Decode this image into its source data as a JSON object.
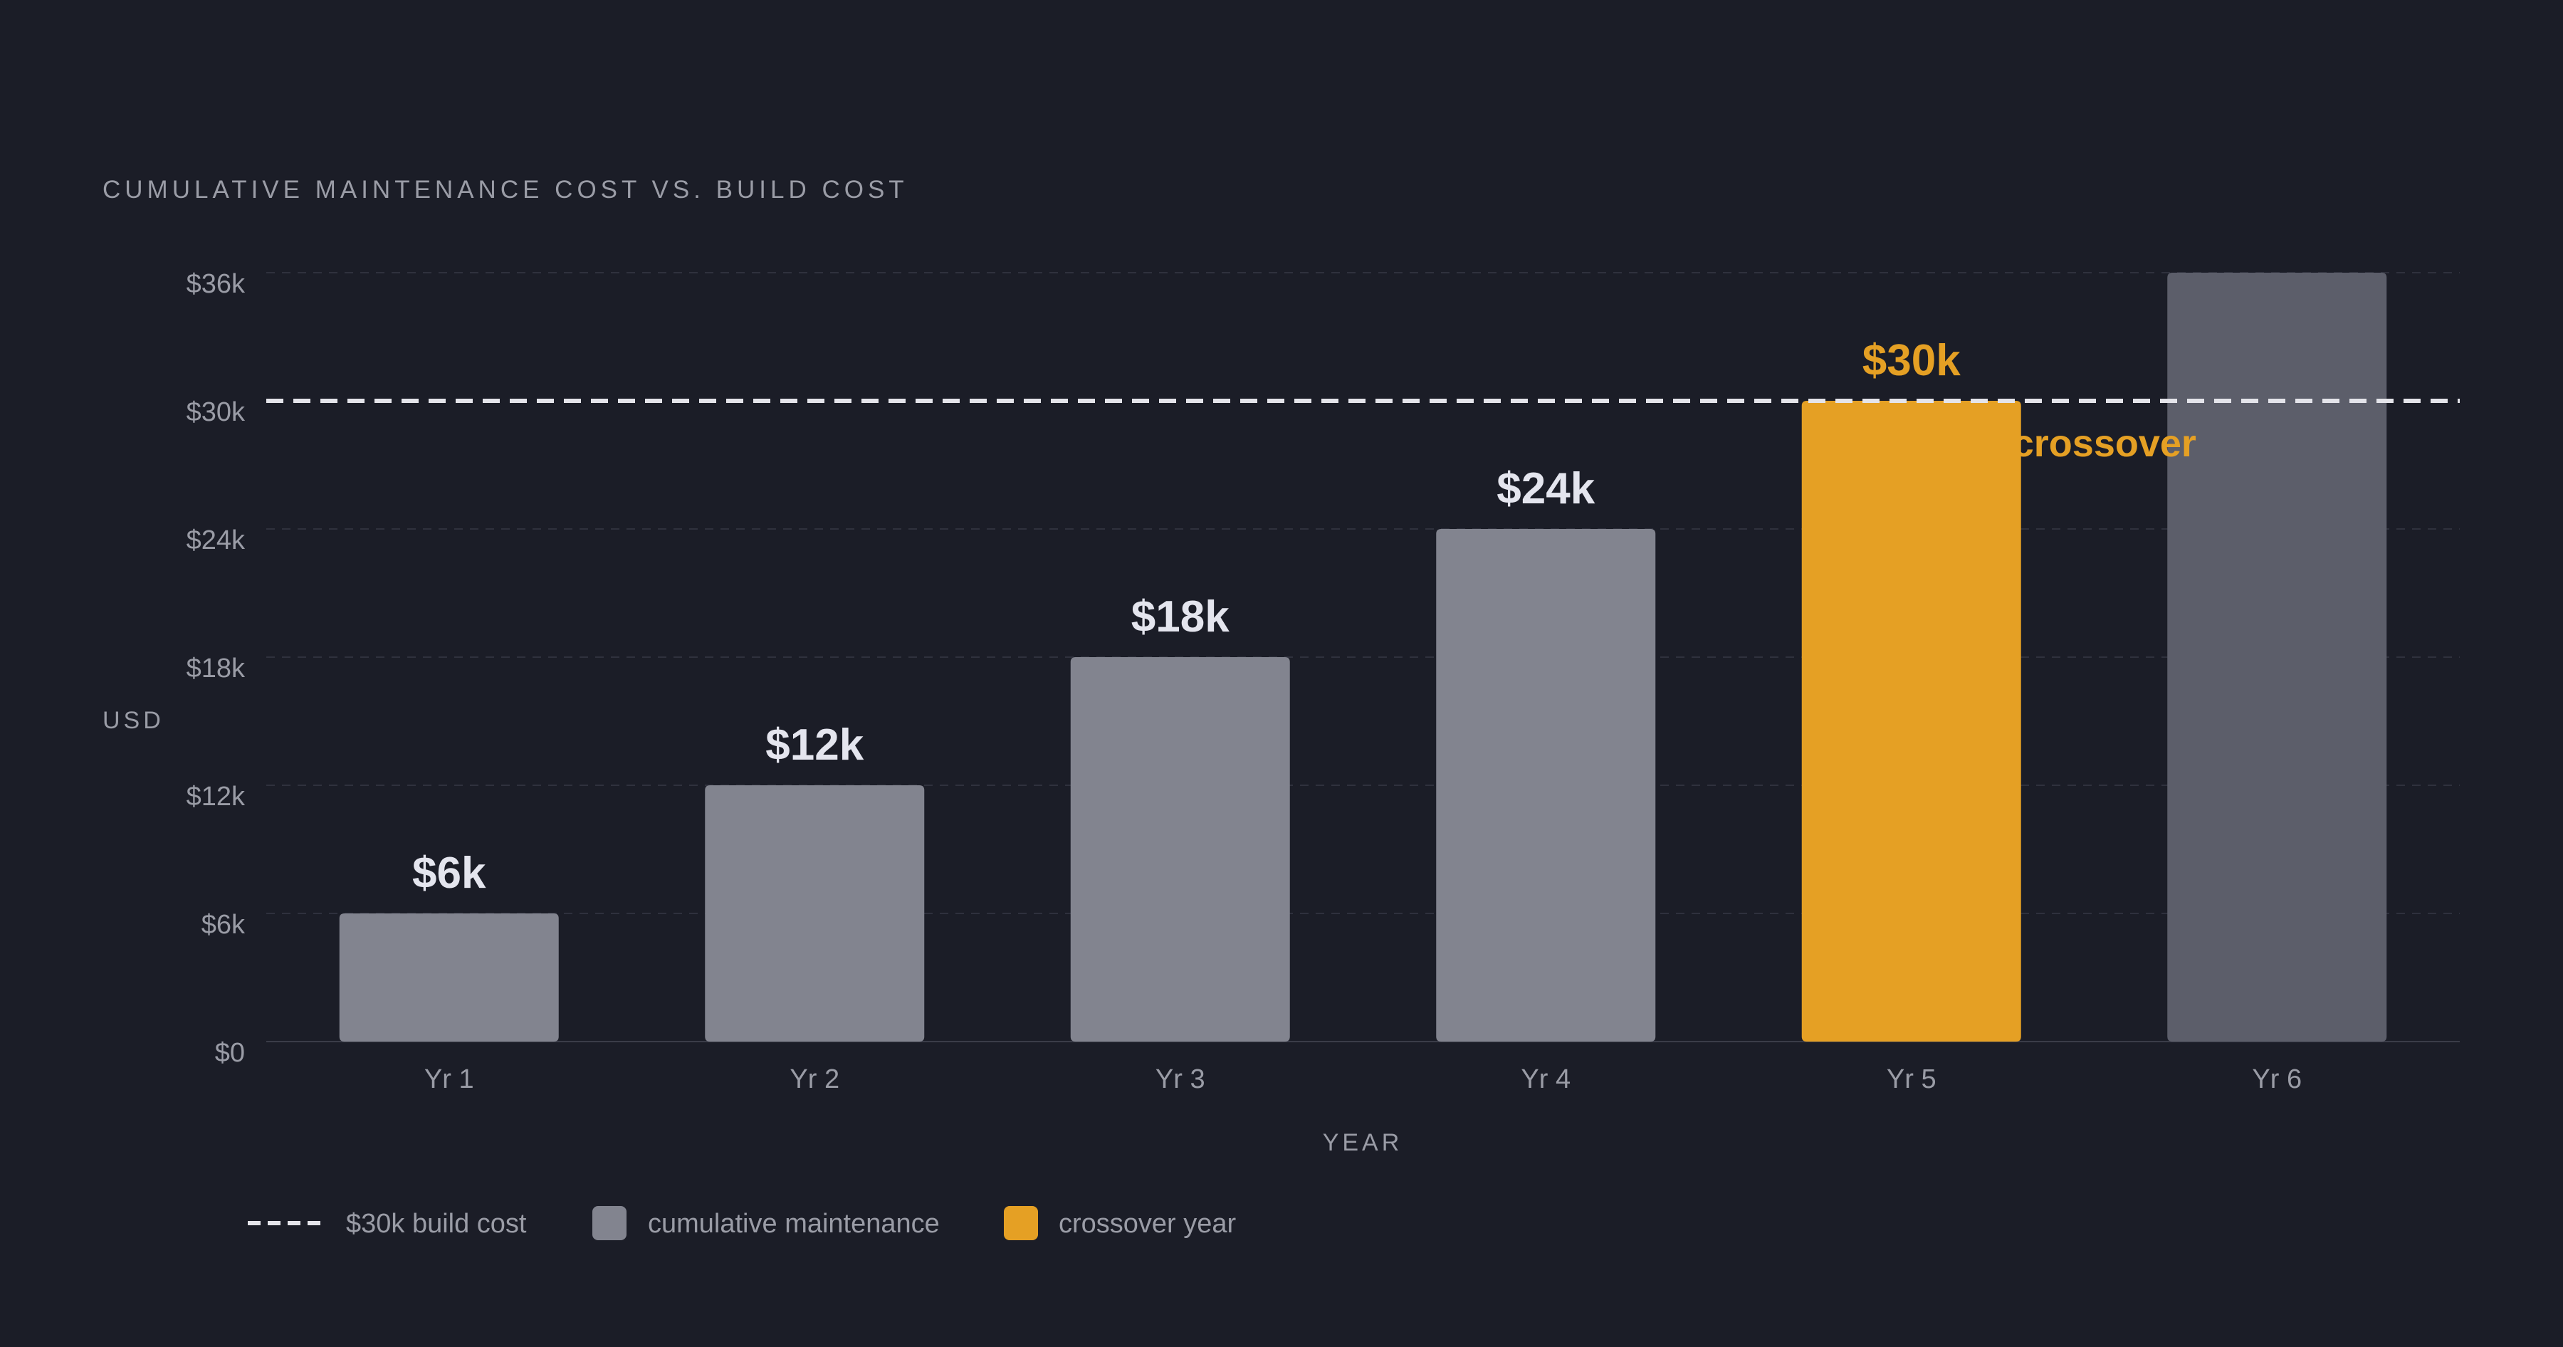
{
  "chart_data": {
    "type": "bar",
    "title": "CUMULATIVE MAINTENANCE COST VS. BUILD COST",
    "xlabel": "YEAR",
    "ylabel": "USD",
    "categories": [
      "Yr 1",
      "Yr 2",
      "Yr 3",
      "Yr 4",
      "Yr 5",
      "Yr 6"
    ],
    "series": [
      {
        "name": "cumulative maintenance",
        "values": [
          6,
          12,
          18,
          24,
          30,
          36
        ]
      }
    ],
    "value_labels": [
      "$6k",
      "$12k",
      "$18k",
      "$24k",
      "$30k",
      ""
    ],
    "unit": "thousand USD",
    "ylim": [
      0,
      36
    ],
    "yticks": [
      {
        "value": 0,
        "label": "$0"
      },
      {
        "value": 6,
        "label": "$6k"
      },
      {
        "value": 12,
        "label": "$12k"
      },
      {
        "value": 18,
        "label": "$18k"
      },
      {
        "value": 24,
        "label": "$24k"
      },
      {
        "value": 30,
        "label": "$30k"
      },
      {
        "value": 36,
        "label": "$36k"
      }
    ],
    "grid": true,
    "reference_line": {
      "value": 30,
      "label": "$30k build cost"
    },
    "highlight": {
      "index": 4,
      "label": "crossover year",
      "annotation": "crossover"
    },
    "muted_indices": [
      5
    ],
    "legend": {
      "position": "bottom-left",
      "items": [
        {
          "label": "$30k build cost",
          "kind": "dashed-line"
        },
        {
          "label": "cumulative maintenance",
          "kind": "swatch"
        },
        {
          "label": "crossover year",
          "kind": "swatch"
        }
      ]
    },
    "colors": {
      "background": "#1b1d27",
      "bar": "#82848f",
      "bar_muted": "#5c5e6a",
      "highlight": "#e5a024",
      "reference_line": "#e4e4ea",
      "value_label": "#e4e5ee",
      "tick_text": "#9a9ca6",
      "gridline": "#2f313d"
    }
  }
}
